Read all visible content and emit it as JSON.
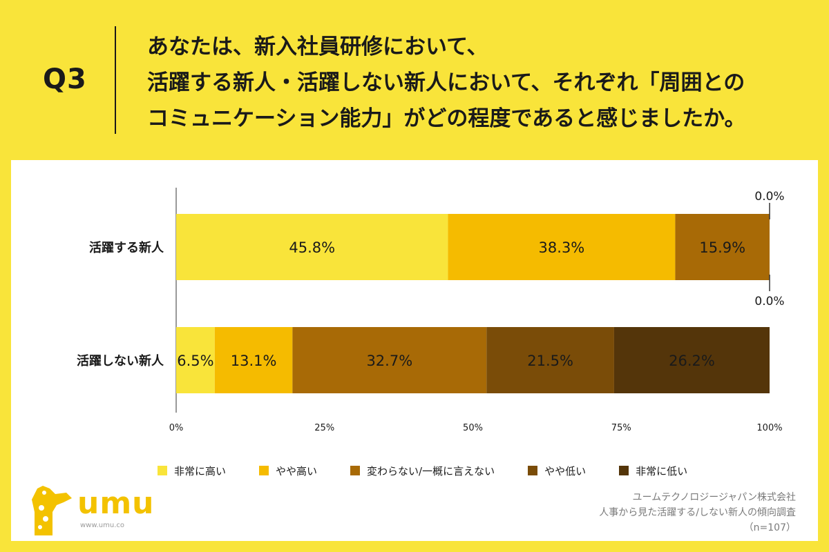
{
  "header": {
    "qnum": "Q3",
    "question_lines": [
      "あなたは、新入社員研修において、",
      "活躍する新人・活躍しない新人において、それぞれ「周囲との",
      "コミュニケーション能力」がどの程度であると感じましたか。"
    ]
  },
  "chart_data": {
    "type": "bar",
    "orientation": "horizontal",
    "stacked": true,
    "categories": [
      "活躍する新人",
      "活躍しない新人"
    ],
    "series": [
      {
        "name": "非常に高い",
        "values": [
          45.8,
          6.5
        ],
        "color": "#F9E43A"
      },
      {
        "name": "やや高い",
        "values": [
          38.3,
          13.1
        ],
        "color": "#F5BB00"
      },
      {
        "name": "変わらない/一概に言えない",
        "values": [
          15.9,
          32.7
        ],
        "color": "#A86A06"
      },
      {
        "name": "やや低い",
        "values": [
          0.0,
          21.5
        ],
        "color": "#7A4C08"
      },
      {
        "name": "非常に低い",
        "values": [
          0.0,
          26.2
        ],
        "color": "#54350A"
      }
    ],
    "value_labels": [
      [
        "45.8%",
        "38.3%",
        "15.9%",
        "0.0%",
        "0.0%"
      ],
      [
        "6.5%",
        "13.1%",
        "32.7%",
        "21.5%",
        "26.2%"
      ]
    ],
    "xlim": [
      0,
      100
    ],
    "xticks": [
      0,
      25,
      50,
      75,
      100
    ],
    "xtick_labels": [
      "0%",
      "25%",
      "50%",
      "75%",
      "100%"
    ],
    "legend_position": "bottom"
  },
  "logo": {
    "word": "umu",
    "url": "www.umu.co",
    "brand_color": "#F3C200"
  },
  "source": {
    "lines": [
      "ユームテクノロジージャパン株式会社",
      "人事から見た活躍する/しない新人の傾向調査",
      "（n=107）"
    ]
  }
}
